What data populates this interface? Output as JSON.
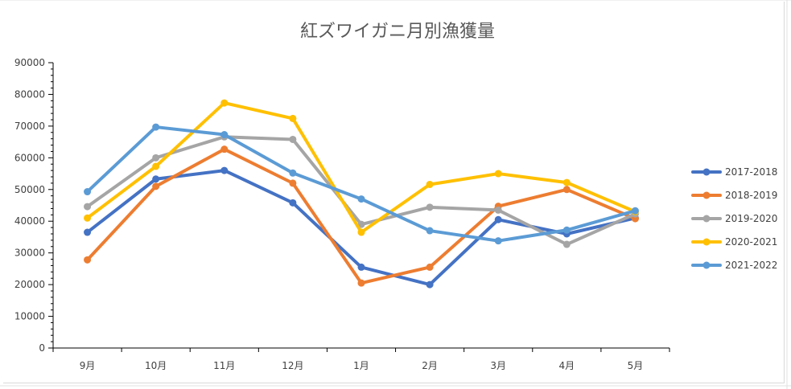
{
  "chart_data": {
    "type": "line",
    "title": "紅ズワイガニ月別漁獲量",
    "categories": [
      "9月",
      "10月",
      "11月",
      "12月",
      "1月",
      "2月",
      "3月",
      "4月",
      "5月"
    ],
    "ylim": [
      0,
      90000
    ],
    "yticks": [
      0,
      10000,
      20000,
      30000,
      40000,
      50000,
      60000,
      70000,
      80000,
      90000
    ],
    "legend_position": "right",
    "series": [
      {
        "name": "2017-2018",
        "color": "#4472C4",
        "values": [
          36500,
          53300,
          56000,
          45800,
          25500,
          20000,
          40500,
          36000,
          41000
        ]
      },
      {
        "name": "2018-2019",
        "color": "#ED7D31",
        "values": [
          27800,
          51000,
          62700,
          52000,
          20500,
          25500,
          44700,
          50000,
          40800
        ]
      },
      {
        "name": "2019-2020",
        "color": "#A5A5A5",
        "values": [
          44600,
          60000,
          66600,
          65800,
          39000,
          44400,
          43500,
          32700,
          42300
        ]
      },
      {
        "name": "2020-2021",
        "color": "#FFC000",
        "values": [
          41000,
          57300,
          77300,
          72400,
          36500,
          51600,
          55000,
          52200,
          43000
        ]
      },
      {
        "name": "2021-2022",
        "color": "#5B9BD5",
        "values": [
          49300,
          69700,
          67300,
          55200,
          47000,
          37000,
          33800,
          37200,
          43300
        ]
      }
    ]
  }
}
